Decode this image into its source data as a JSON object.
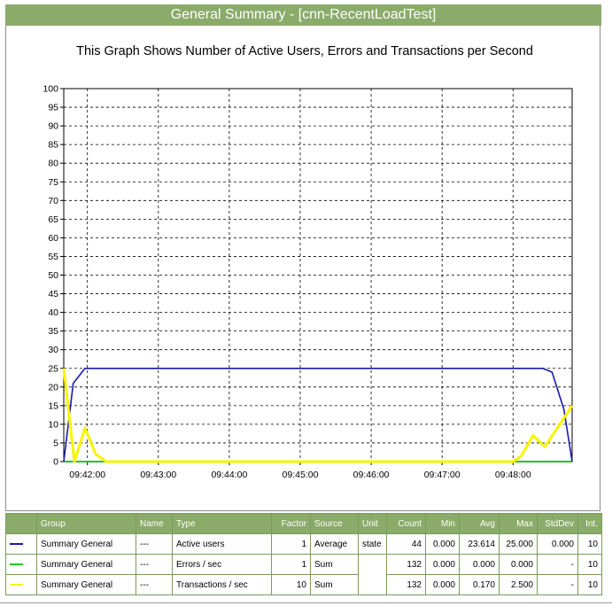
{
  "header": {
    "title": "General Summary - [cnn-RecentLoadTest]"
  },
  "chart_data": {
    "type": "line",
    "title": "This Graph Shows Number of Active Users, Errors and Transactions per Second",
    "xlabel": "",
    "ylabel": "",
    "ylim": [
      0,
      100
    ],
    "yticks": [
      0,
      5,
      10,
      15,
      20,
      25,
      30,
      35,
      40,
      45,
      50,
      55,
      60,
      65,
      70,
      75,
      80,
      85,
      90,
      95,
      100
    ],
    "xlim": [
      "09:41:40",
      "09:48:50"
    ],
    "xtick_labels": [
      "09:42:00",
      "09:43:00",
      "09:44:00",
      "09:45:00",
      "09:46:00",
      "09:47:00",
      "09:48:00"
    ],
    "grid": true,
    "series": [
      {
        "name": "Active users",
        "color": "#1a1aa8",
        "points": [
          [
            "09:41:40",
            0
          ],
          [
            "09:41:48",
            21
          ],
          [
            "09:41:58",
            25
          ],
          [
            "09:48:25",
            25
          ],
          [
            "09:48:33",
            24
          ],
          [
            "09:48:43",
            14
          ],
          [
            "09:48:50",
            0
          ]
        ]
      },
      {
        "name": "Errors / sec",
        "color": "#1ec81e",
        "points": [
          [
            "09:41:40",
            0
          ],
          [
            "09:48:50",
            0
          ]
        ]
      },
      {
        "name": "Transactions / sec",
        "color": "#f5f500",
        "points": [
          [
            "09:41:40",
            25
          ],
          [
            "09:41:49",
            0
          ],
          [
            "09:41:58",
            9
          ],
          [
            "09:42:07",
            2
          ],
          [
            "09:42:16",
            0
          ],
          [
            "09:48:00",
            0
          ],
          [
            "09:48:07",
            1.5
          ],
          [
            "09:48:17",
            7
          ],
          [
            "09:48:27",
            4
          ],
          [
            "09:48:50",
            15
          ]
        ]
      }
    ]
  },
  "legend": {
    "headers": [
      "",
      "Group",
      "Name",
      "Type",
      "Factor",
      "Source",
      "Unit",
      "Count",
      "Min",
      "Avg",
      "Max",
      "StdDev",
      "Int."
    ],
    "rows": [
      {
        "color": "#1a1aa8",
        "group": "Summary General",
        "name": "---",
        "type": "Active users",
        "factor": "1",
        "source": "Average",
        "unit": "state",
        "count": "44",
        "min": "0.000",
        "avg": "23.614",
        "max": "25.000",
        "stddev": "0.000",
        "int": "10"
      },
      {
        "color": "#1ec81e",
        "group": "Summary General",
        "name": "---",
        "type": "Errors / sec",
        "factor": "1",
        "source": "Sum",
        "unit": "",
        "count": "132",
        "min": "0.000",
        "avg": "0.000",
        "max": "0.000",
        "stddev": "-",
        "int": "10"
      },
      {
        "color": "#f5f500",
        "group": "Summary General",
        "name": "---",
        "type": "Transactions / sec",
        "factor": "10",
        "source": "Sum",
        "unit": "",
        "count": "132",
        "min": "0.000",
        "avg": "0.170",
        "max": "2.500",
        "stddev": "-",
        "int": "10"
      }
    ]
  }
}
